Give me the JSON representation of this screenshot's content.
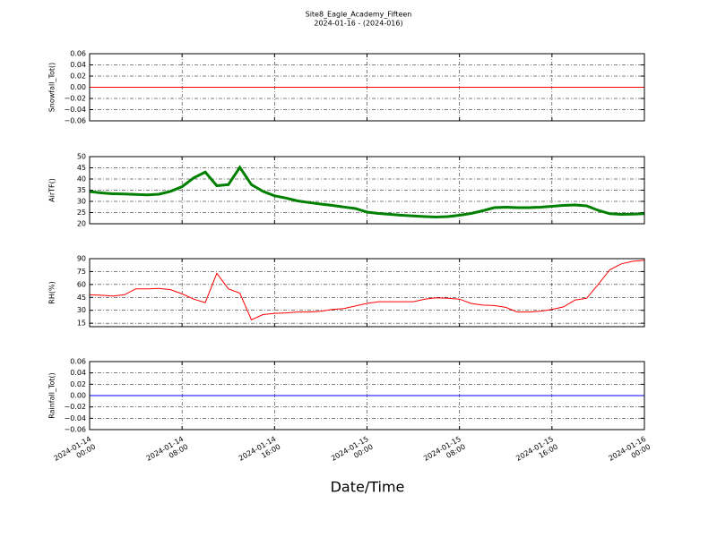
{
  "figure": {
    "title": "Site8_Eagle_Academy_Fifteen",
    "subtitle": "2024-01-16 - (2024-016)",
    "xlabel": "Date/Time",
    "xlim": [
      "2024-01-14 00:00",
      "2024-01-16 00:00"
    ],
    "xticks": [
      {
        "value": "2024-01-14 00:00",
        "label": [
          "2024-01-14",
          "00:00"
        ]
      },
      {
        "value": "2024-01-14 08:00",
        "label": [
          "2024-01-14",
          "08:00"
        ]
      },
      {
        "value": "2024-01-14 16:00",
        "label": [
          "2024-01-14",
          "16:00"
        ]
      },
      {
        "value": "2024-01-15 00:00",
        "label": [
          "2024-01-15",
          "00:00"
        ]
      },
      {
        "value": "2024-01-15 08:00",
        "label": [
          "2024-01-15",
          "08:00"
        ]
      },
      {
        "value": "2024-01-15 16:00",
        "label": [
          "2024-01-15",
          "16:00"
        ]
      },
      {
        "value": "2024-01-16 00:00",
        "label": [
          "2024-01-16",
          "00:00"
        ]
      }
    ]
  },
  "chart_data": [
    {
      "type": "line",
      "ylabel": "Snowfall_Tot()",
      "x": [
        "2024-01-14 00:00",
        "2024-01-16 00:00"
      ],
      "series": [
        {
          "color": "#ff0000",
          "values": [
            0,
            0
          ]
        }
      ],
      "ylim": [
        -0.06,
        0.06
      ],
      "yticks": [
        {
          "value": -0.06,
          "label": "−0.06"
        },
        {
          "value": -0.04,
          "label": "−0.04"
        },
        {
          "value": -0.02,
          "label": "−0.02"
        },
        {
          "value": 0,
          "label": "0.00"
        },
        0.02,
        0.04,
        0.06
      ],
      "grid": true
    },
    {
      "type": "line",
      "ylabel": "AirTF()",
      "x": [
        "2024-01-14 00:00",
        "2024-01-14 01:00",
        "2024-01-14 02:00",
        "2024-01-14 03:00",
        "2024-01-14 04:00",
        "2024-01-14 05:00",
        "2024-01-14 06:00",
        "2024-01-14 07:00",
        "2024-01-14 08:00",
        "2024-01-14 09:00",
        "2024-01-14 10:00",
        "2024-01-14 11:00",
        "2024-01-14 12:00",
        "2024-01-14 13:00",
        "2024-01-14 14:00",
        "2024-01-14 15:00",
        "2024-01-14 16:00",
        "2024-01-14 17:00",
        "2024-01-14 18:00",
        "2024-01-14 19:00",
        "2024-01-14 20:00",
        "2024-01-14 21:00",
        "2024-01-14 22:00",
        "2024-01-14 23:00",
        "2024-01-15 00:00",
        "2024-01-15 01:00",
        "2024-01-15 02:00",
        "2024-01-15 03:00",
        "2024-01-15 04:00",
        "2024-01-15 05:00",
        "2024-01-15 06:00",
        "2024-01-15 07:00",
        "2024-01-15 08:00",
        "2024-01-15 09:00",
        "2024-01-15 10:00",
        "2024-01-15 11:00",
        "2024-01-15 12:00",
        "2024-01-15 13:00",
        "2024-01-15 14:00",
        "2024-01-15 15:00",
        "2024-01-15 16:00",
        "2024-01-15 17:00",
        "2024-01-15 18:00",
        "2024-01-15 19:00",
        "2024-01-15 20:00",
        "2024-01-15 21:00",
        "2024-01-15 22:00",
        "2024-01-15 23:00",
        "2024-01-16 00:00"
      ],
      "series": [
        {
          "color": "#008000",
          "values": [
            34.4,
            33.8,
            33.4,
            33.3,
            33.1,
            32.9,
            33.2,
            34.5,
            36.6,
            40.5,
            43.1,
            37,
            37.5,
            45.2,
            37.5,
            34.5,
            32.5,
            31.5,
            30.2,
            29.5,
            28.8,
            28.2,
            27.5,
            26.8,
            25.2,
            24.6,
            24.2,
            23.8,
            23.5,
            23.2,
            23,
            23.2,
            23.8,
            24.6,
            25.8,
            27.2,
            27.4,
            27.2,
            27.2,
            27.4,
            27.8,
            28.2,
            28.4,
            28,
            26,
            24.5,
            24.2,
            24.3,
            24.5
          ]
        }
      ],
      "ylim": [
        20,
        50
      ],
      "yticks": [
        20,
        25,
        30,
        35,
        40,
        45,
        50
      ],
      "grid": true
    },
    {
      "type": "line",
      "ylabel": "RH(%)",
      "x": [
        "2024-01-14 00:00",
        "2024-01-14 01:00",
        "2024-01-14 02:00",
        "2024-01-14 03:00",
        "2024-01-14 04:00",
        "2024-01-14 05:00",
        "2024-01-14 06:00",
        "2024-01-14 07:00",
        "2024-01-14 08:00",
        "2024-01-14 09:00",
        "2024-01-14 10:00",
        "2024-01-14 11:00",
        "2024-01-14 12:00",
        "2024-01-14 13:00",
        "2024-01-14 14:00",
        "2024-01-14 15:00",
        "2024-01-14 16:00",
        "2024-01-14 17:00",
        "2024-01-14 18:00",
        "2024-01-14 19:00",
        "2024-01-14 20:00",
        "2024-01-14 21:00",
        "2024-01-14 22:00",
        "2024-01-14 23:00",
        "2024-01-15 00:00",
        "2024-01-15 01:00",
        "2024-01-15 02:00",
        "2024-01-15 03:00",
        "2024-01-15 04:00",
        "2024-01-15 05:00",
        "2024-01-15 06:00",
        "2024-01-15 07:00",
        "2024-01-15 08:00",
        "2024-01-15 09:00",
        "2024-01-15 10:00",
        "2024-01-15 11:00",
        "2024-01-15 12:00",
        "2024-01-15 13:00",
        "2024-01-15 14:00",
        "2024-01-15 15:00",
        "2024-01-15 16:00",
        "2024-01-15 17:00",
        "2024-01-15 18:00",
        "2024-01-15 19:00",
        "2024-01-15 20:00",
        "2024-01-15 21:00",
        "2024-01-15 22:00",
        "2024-01-15 23:00",
        "2024-01-16 00:00"
      ],
      "series": [
        {
          "color": "#ff0000",
          "values": [
            48,
            47.5,
            46.5,
            48,
            55,
            55,
            55.5,
            54,
            49,
            43,
            39,
            73,
            55,
            50,
            19,
            25,
            26.5,
            27,
            28,
            28,
            29,
            31,
            32,
            35,
            38,
            40,
            40,
            40,
            40,
            43,
            44.5,
            44,
            43,
            38,
            36,
            35.5,
            33.5,
            28,
            28,
            29,
            31,
            34,
            42,
            44,
            60,
            77,
            84,
            87,
            88
          ]
        }
      ],
      "ylim": [
        11,
        90
      ],
      "yticks": [
        15,
        30,
        45,
        60,
        75,
        90
      ],
      "grid": true
    },
    {
      "type": "line",
      "ylabel": "Rainfall_Tot()",
      "x": [
        "2024-01-14 00:00",
        "2024-01-16 00:00"
      ],
      "series": [
        {
          "color": "#0000ff",
          "values": [
            0,
            0
          ]
        }
      ],
      "ylim": [
        -0.06,
        0.06
      ],
      "yticks": [
        {
          "value": -0.06,
          "label": "−0.06"
        },
        {
          "value": -0.04,
          "label": "−0.04"
        },
        {
          "value": -0.02,
          "label": "−0.02"
        },
        {
          "value": 0,
          "label": "0.00"
        },
        0.02,
        0.04,
        0.06
      ],
      "grid": true
    }
  ]
}
